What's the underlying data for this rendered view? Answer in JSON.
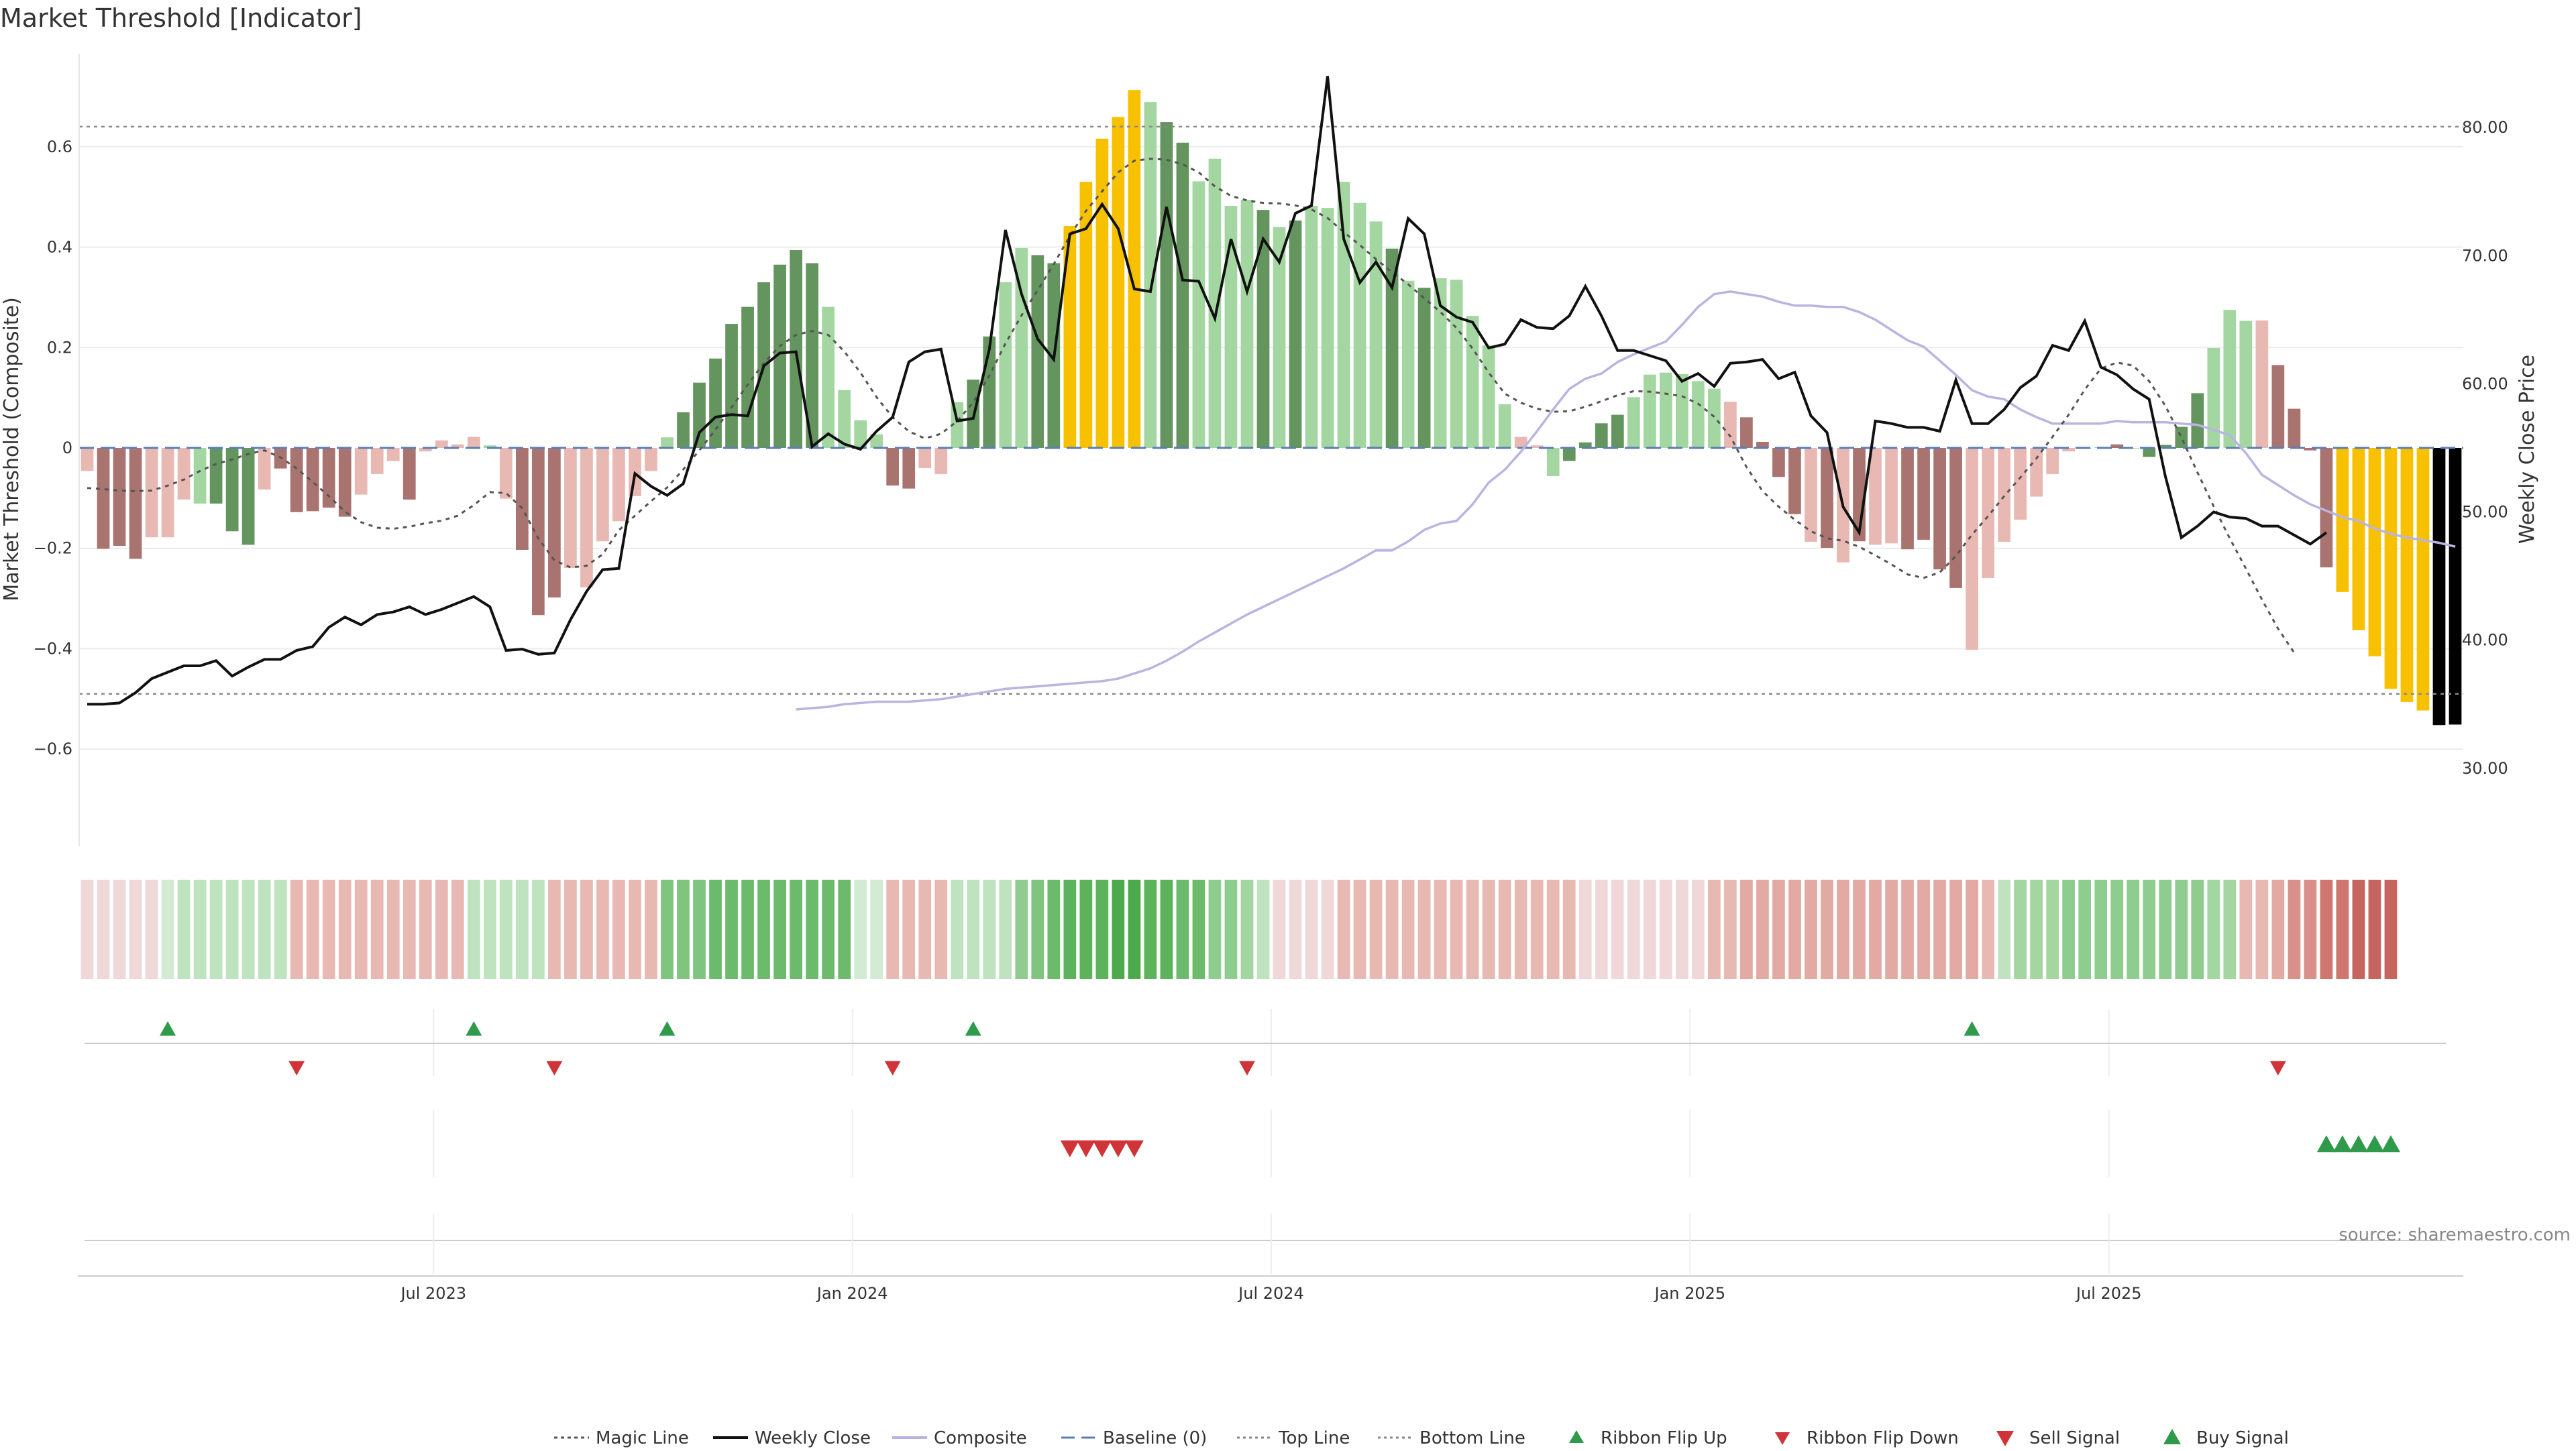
{
  "chart_data": {
    "type": "bar",
    "title": "Market Threshold [Indicator]",
    "ylabel": "Market Threshold (Composite)",
    "y2label": "Weekly Close Price",
    "source": "source: sharemaestro.com",
    "ylim": [
      -0.78,
      0.78
    ],
    "y2lim": [
      24.45,
      85.55
    ],
    "yticks": [
      {
        "v": 0.6,
        "label": "0.6"
      },
      {
        "v": 0.4,
        "label": "0.4"
      },
      {
        "v": 0.2,
        "label": "0.2"
      },
      {
        "v": 0,
        "label": "0"
      },
      {
        "v": -0.2,
        "label": "−0.2"
      },
      {
        "v": -0.4,
        "label": "−0.4"
      },
      {
        "v": -0.6,
        "label": "−0.6"
      }
    ],
    "y2ticks": [
      {
        "v": 80,
        "label": "80.00"
      },
      {
        "v": 70,
        "label": "70.00"
      },
      {
        "v": 60,
        "label": "60.00"
      },
      {
        "v": 50,
        "label": "50.00"
      },
      {
        "v": 40,
        "label": "40.00"
      },
      {
        "v": 30,
        "label": "30.00"
      }
    ],
    "xticks": [
      {
        "i": 22,
        "label": "Jul 2023"
      },
      {
        "i": 48,
        "label": "Jan 2024"
      },
      {
        "i": 74,
        "label": "Jul 2024"
      },
      {
        "i": 100,
        "label": "Jan 2025"
      },
      {
        "i": 126,
        "label": "Jul 2025"
      }
    ],
    "top_line": 0.64,
    "bottom_line": -0.49,
    "baseline": 0,
    "composite": [
      -0.046,
      -0.201,
      -0.195,
      -0.221,
      -0.178,
      -0.178,
      -0.103,
      -0.111,
      -0.111,
      -0.166,
      -0.193,
      -0.083,
      -0.041,
      -0.128,
      -0.126,
      -0.119,
      -0.137,
      -0.093,
      -0.052,
      -0.026,
      -0.103,
      -0.007,
      0.015,
      0.007,
      0.022,
      0.005,
      -0.101,
      -0.203,
      -0.333,
      -0.298,
      -0.239,
      -0.278,
      -0.186,
      -0.146,
      -0.096,
      -0.046,
      0.021,
      0.071,
      0.13,
      0.178,
      0.247,
      0.281,
      0.33,
      0.365,
      0.394,
      0.368,
      0.281,
      0.115,
      0.055,
      0.027,
      -0.075,
      -0.081,
      -0.04,
      -0.052,
      0.091,
      0.136,
      0.222,
      0.33,
      0.398,
      0.384,
      0.368,
      0.442,
      0.53,
      0.616,
      0.659,
      0.713,
      0.689,
      0.649,
      0.608,
      0.531,
      0.576,
      0.482,
      0.494,
      0.474,
      0.44,
      0.453,
      0.482,
      0.478,
      0.53,
      0.488,
      0.451,
      0.397,
      0.333,
      0.319,
      0.338,
      0.335,
      0.263,
      0.204,
      0.087,
      0.022,
      0.005,
      -0.056,
      -0.026,
      0.011,
      0.049,
      0.066,
      0.101,
      0.146,
      0.15,
      0.147,
      0.133,
      0.118,
      0.092,
      0.061,
      0.012,
      -0.058,
      -0.132,
      -0.187,
      -0.199,
      -0.228,
      -0.186,
      -0.193,
      -0.19,
      -0.202,
      -0.183,
      -0.242,
      -0.279,
      -0.402,
      -0.259,
      -0.187,
      -0.143,
      -0.097,
      -0.052,
      -0.007,
      -0.002,
      0.002,
      0.007,
      0.0,
      -0.018,
      0.006,
      0.042,
      0.109,
      0.199,
      0.275,
      0.253,
      0.254,
      0.165,
      0.078,
      -0.005,
      -0.238,
      -0.287,
      -0.363,
      -0.415,
      -0.48,
      -0.506,
      -0.523,
      -0.552,
      -0.551
    ],
    "bar_colors": [
      "#e8b9b3",
      "#a97470",
      "#a97470",
      "#a97470",
      "#e8b9b3",
      "#e8b9b3",
      "#e8b9b3",
      "#a4d6a1",
      "#64955f",
      "#64955f",
      "#64955f",
      "#e8b9b3",
      "#a97470",
      "#a97470",
      "#a97470",
      "#a97470",
      "#a97470",
      "#e8b9b3",
      "#e8b9b3",
      "#e8b9b3",
      "#a97470",
      "#e8b9b3",
      "#e8b9b3",
      "#e8b9b3",
      "#e8b9b3",
      "#a4d6a1",
      "#e8b9b3",
      "#a97470",
      "#a97470",
      "#a97470",
      "#e8b9b3",
      "#e8b9b3",
      "#e8b9b3",
      "#e8b9b3",
      "#e8b9b3",
      "#e8b9b3",
      "#a4d6a1",
      "#64955f",
      "#64955f",
      "#64955f",
      "#64955f",
      "#64955f",
      "#64955f",
      "#64955f",
      "#64955f",
      "#64955f",
      "#a4d6a1",
      "#a4d6a1",
      "#a4d6a1",
      "#a4d6a1",
      "#a97470",
      "#a97470",
      "#e8b9b3",
      "#e8b9b3",
      "#a4d6a1",
      "#64955f",
      "#64955f",
      "#a4d6a1",
      "#a4d6a1",
      "#64955f",
      "#64955f",
      "#f7c100",
      "#f7c100",
      "#f7c100",
      "#f7c100",
      "#f7c100",
      "#a4d6a1",
      "#64955f",
      "#64955f",
      "#a4d6a1",
      "#a4d6a1",
      "#a4d6a1",
      "#a4d6a1",
      "#64955f",
      "#a4d6a1",
      "#64955f",
      "#a4d6a1",
      "#a4d6a1",
      "#a4d6a1",
      "#a4d6a1",
      "#a4d6a1",
      "#64955f",
      "#a4d6a1",
      "#64955f",
      "#a4d6a1",
      "#a4d6a1",
      "#a4d6a1",
      "#a4d6a1",
      "#a4d6a1",
      "#e8b9b3",
      "#e8b9b3",
      "#a4d6a1",
      "#64955f",
      "#64955f",
      "#64955f",
      "#64955f",
      "#a4d6a1",
      "#a4d6a1",
      "#a4d6a1",
      "#a4d6a1",
      "#a4d6a1",
      "#a4d6a1",
      "#e8b9b3",
      "#a97470",
      "#a97470",
      "#a97470",
      "#a97470",
      "#e8b9b3",
      "#a97470",
      "#e8b9b3",
      "#a97470",
      "#e8b9b3",
      "#e8b9b3",
      "#a97470",
      "#a97470",
      "#a97470",
      "#a97470",
      "#e8b9b3",
      "#e8b9b3",
      "#e8b9b3",
      "#e8b9b3",
      "#e8b9b3",
      "#e8b9b3",
      "#e8b9b3",
      "#a4d6a1",
      "#a4d6a1",
      "#a97470",
      "#a4d6a1",
      "#64955f",
      "#64955f",
      "#64955f",
      "#64955f",
      "#a4d6a1",
      "#a4d6a1",
      "#a4d6a1",
      "#e8b9b3",
      "#a97470",
      "#a97470",
      "#a97470",
      "#a97470",
      "#f7c100",
      "#f7c100",
      "#f7c100",
      "#f7c100",
      "#f7c100",
      "#f7c100"
    ],
    "weekly_close": [
      35.0,
      35.0,
      35.1,
      35.9,
      37.0,
      37.5,
      38.0,
      38.0,
      38.4,
      37.2,
      37.9,
      38.5,
      38.5,
      39.2,
      39.5,
      41.0,
      41.8,
      41.2,
      42.0,
      42.2,
      42.6,
      42.0,
      42.4,
      42.9,
      43.4,
      42.6,
      39.2,
      39.3,
      38.9,
      39.0,
      41.6,
      43.8,
      45.5,
      45.6,
      53.0,
      52.0,
      51.3,
      52.2,
      56.2,
      57.4,
      57.6,
      57.5,
      61.4,
      62.4,
      62.5,
      55.1,
      56.1,
      55.3,
      54.9,
      56.3,
      57.4,
      61.7,
      62.5,
      62.7,
      57.1,
      57.3,
      62.7,
      72.0,
      67.0,
      63.5,
      61.9,
      71.7,
      72.1,
      74.0,
      72.1,
      67.4,
      67.2,
      73.8,
      68.1,
      68.0,
      65.1,
      71.3,
      67.2,
      71.3,
      69.5,
      73.3,
      73.9,
      84.0,
      71.3,
      67.9,
      69.5,
      67.5,
      72.9,
      71.7,
      66.1,
      65.2,
      64.8,
      62.8,
      63.1,
      65.0,
      64.4,
      64.3,
      65.3,
      67.6,
      65.3,
      62.6,
      62.6,
      62.2,
      61.8,
      60.2,
      60.8,
      59.8,
      61.6,
      61.7,
      61.9,
      60.4,
      60.9,
      57.5,
      56.2,
      50.4,
      48.4,
      57.1,
      56.9,
      56.6,
      56.6,
      56.3,
      60.3,
      56.9,
      56.9,
      58.0,
      59.7,
      60.6,
      63.0,
      62.6,
      64.9,
      61.3,
      60.7,
      59.6,
      58.8,
      52.8,
      48.0,
      48.9,
      50.0,
      49.6,
      49.5,
      48.9,
      48.9,
      48.2,
      47.5,
      48.4
    ],
    "composite_line": [
      34.6,
      34.7,
      34.8,
      35.0,
      35.1,
      35.2,
      35.2,
      35.2,
      35.3,
      35.4,
      35.6,
      35.8,
      36.0,
      36.2,
      36.3,
      36.4,
      36.5,
      36.6,
      36.7,
      36.8,
      37.0,
      37.4,
      37.8,
      38.4,
      39.1,
      39.9,
      40.6,
      41.3,
      42.0,
      42.6,
      43.2,
      43.8,
      44.4,
      45.0,
      45.6,
      46.3,
      47.0,
      47.0,
      47.7,
      48.6,
      49.1,
      49.3,
      50.6,
      52.3,
      53.3,
      54.7,
      56.3,
      58.0,
      59.6,
      60.4,
      60.8,
      61.7,
      62.3,
      62.8,
      63.3,
      64.6,
      66.0,
      67.0,
      67.2,
      67.0,
      66.8,
      66.4,
      66.1,
      66.1,
      66.0,
      66.0,
      65.6,
      65.0,
      64.2,
      63.4,
      62.9,
      61.8,
      60.7,
      59.5,
      59.0,
      58.8,
      58.0,
      57.4,
      56.9,
      56.9,
      56.9,
      56.9,
      57.1,
      57.0,
      57.0,
      57.0,
      56.9,
      56.8,
      56.4,
      56.0,
      54.6,
      52.9,
      52.1,
      51.3,
      50.6,
      50.1,
      49.6,
      49.3,
      48.7,
      48.3,
      48.0,
      47.8,
      47.6,
      47.3
    ],
    "magic_line": [
      -0.08,
      -0.082,
      -0.085,
      -0.086,
      -0.085,
      -0.075,
      -0.063,
      -0.046,
      -0.032,
      -0.023,
      -0.012,
      -0.005,
      -0.019,
      -0.041,
      -0.068,
      -0.096,
      -0.127,
      -0.148,
      -0.159,
      -0.161,
      -0.157,
      -0.15,
      -0.145,
      -0.135,
      -0.114,
      -0.088,
      -0.09,
      -0.12,
      -0.18,
      -0.224,
      -0.238,
      -0.235,
      -0.212,
      -0.164,
      -0.135,
      -0.106,
      -0.079,
      -0.043,
      -0.005,
      0.036,
      0.081,
      0.126,
      0.169,
      0.203,
      0.225,
      0.233,
      0.225,
      0.192,
      0.15,
      0.101,
      0.061,
      0.033,
      0.019,
      0.028,
      0.053,
      0.091,
      0.144,
      0.208,
      0.264,
      0.314,
      0.366,
      0.422,
      0.472,
      0.511,
      0.549,
      0.572,
      0.576,
      0.574,
      0.565,
      0.549,
      0.521,
      0.502,
      0.493,
      0.488,
      0.487,
      0.483,
      0.475,
      0.458,
      0.43,
      0.404,
      0.376,
      0.35,
      0.326,
      0.298,
      0.271,
      0.239,
      0.198,
      0.15,
      0.108,
      0.09,
      0.078,
      0.072,
      0.073,
      0.082,
      0.093,
      0.105,
      0.113,
      0.112,
      0.108,
      0.103,
      0.088,
      0.062,
      0.023,
      -0.038,
      -0.086,
      -0.117,
      -0.143,
      -0.166,
      -0.18,
      -0.185,
      -0.197,
      -0.214,
      -0.232,
      -0.252,
      -0.259,
      -0.248,
      -0.215,
      -0.173,
      -0.136,
      -0.096,
      -0.059,
      -0.021,
      0.022,
      0.066,
      0.116,
      0.158,
      0.17,
      0.164,
      0.133,
      0.084,
      0.021,
      -0.049,
      -0.116,
      -0.18,
      -0.24,
      -0.302,
      -0.36,
      -0.408
    ],
    "ribbon": [
      "#f1d8d8",
      "#f1d8d8",
      "#f1d8d8",
      "#f1d8d8",
      "#f1d8d8",
      "#d3ead3",
      "#bfe2bf",
      "#bfe2bf",
      "#bfe2bf",
      "#bfe2bf",
      "#bfe2bf",
      "#bfe2bf",
      "#bfe2bf",
      "#e8b9b3",
      "#e8b9b3",
      "#e8b9b3",
      "#e8b9b3",
      "#e8b9b3",
      "#e8b9b3",
      "#e8b9b3",
      "#e8b9b3",
      "#e8b9b3",
      "#e8b9b3",
      "#e8b9b3",
      "#bfe2bf",
      "#bfe2bf",
      "#bfe2bf",
      "#bfe2bf",
      "#bfe2bf",
      "#e8b9b3",
      "#e8b9b3",
      "#e8b9b3",
      "#e8b9b3",
      "#e8b9b3",
      "#e8b9b3",
      "#e8b9b3",
      "#7fc47f",
      "#7fc47f",
      "#7fc47f",
      "#6cbb6c",
      "#6cbb6c",
      "#6cbb6c",
      "#6cbb6c",
      "#6cbb6c",
      "#6cbb6c",
      "#6cbb6c",
      "#6cbb6c",
      "#6cbb6c",
      "#d3ead3",
      "#d3ead3",
      "#e8b9b3",
      "#e8b9b3",
      "#e8b9b3",
      "#e8b9b3",
      "#bfe2bf",
      "#bfe2bf",
      "#bfe2bf",
      "#bfe2bf",
      "#8fcc8f",
      "#7fc47f",
      "#6cbb6c",
      "#5cb35c",
      "#5cb35c",
      "#5cb35c",
      "#4caa4c",
      "#4caa4c",
      "#5cb35c",
      "#5cb35c",
      "#6cbb6c",
      "#6cbb6c",
      "#8fcc8f",
      "#8fcc8f",
      "#a4d6a1",
      "#bfe2bf",
      "#f1d8d8",
      "#f1d8d8",
      "#f1d8d8",
      "#f1d8d8",
      "#e8b9b3",
      "#e8b9b3",
      "#e8b9b3",
      "#e8b9b3",
      "#e8b9b3",
      "#e8b9b3",
      "#e8b9b3",
      "#e8b9b3",
      "#e8b9b3",
      "#e8b9b3",
      "#e8b9b3",
      "#e8b9b3",
      "#e8b9b3",
      "#e8b9b3",
      "#e8b9b3",
      "#f1d8d8",
      "#f1d8d8",
      "#f1d8d8",
      "#f1d8d8",
      "#f1d8d8",
      "#f1d8d8",
      "#f1d8d8",
      "#f1d8d8",
      "#e8b9b3",
      "#e8b9b3",
      "#e3a9a3",
      "#e3a9a3",
      "#e3a9a3",
      "#e3a9a3",
      "#e3a9a3",
      "#e3a9a3",
      "#e3a9a3",
      "#e3a9a3",
      "#e3a9a3",
      "#e3a9a3",
      "#e3a9a3",
      "#e3a9a3",
      "#e3a9a3",
      "#e3a9a3",
      "#e3a9a3",
      "#e8b9b3",
      "#bfe2bf",
      "#a4d6a1",
      "#a4d6a1",
      "#a4d6a1",
      "#8fcc8f",
      "#8fcc8f",
      "#8fcc8f",
      "#8fcc8f",
      "#8fcc8f",
      "#8fcc8f",
      "#8fcc8f",
      "#8fcc8f",
      "#8fcc8f",
      "#a4d6a1",
      "#a4d6a1",
      "#e8b9b3",
      "#e8b9b3",
      "#e3a9a3",
      "#d98f8a",
      "#d98f8a",
      "#cf7670",
      "#cf7670",
      "#c66460",
      "#c66460",
      "#c66460"
    ],
    "ribbon_flip_up": [
      5,
      24,
      36,
      55,
      117
    ],
    "ribbon_flip_down": [
      13,
      29,
      50,
      72,
      136
    ],
    "sell_signal": [
      61,
      62,
      63,
      64,
      65
    ],
    "buy_signal": [
      139,
      140,
      141,
      142,
      143
    ],
    "colors": {
      "dark_green": "#64955f",
      "light_green": "#a4d6a1",
      "dark_red": "#a97470",
      "light_red": "#e8b9b3",
      "yellow": "#f7c100",
      "magic_line": "#555555",
      "weekly_close": "#111111",
      "composite": "#b9b4e0",
      "baseline": "#5b7fb5",
      "flip_up": "#2e9a4a",
      "flip_down": "#d13438",
      "sell": "#d13438",
      "buy": "#2e9a4a"
    },
    "legend": [
      {
        "key": "magic",
        "label": "Magic Line"
      },
      {
        "key": "close",
        "label": "Weekly Close"
      },
      {
        "key": "composite",
        "label": "Composite"
      },
      {
        "key": "baseline",
        "label": "Baseline (0)"
      },
      {
        "key": "top",
        "label": "Top Line"
      },
      {
        "key": "bottom",
        "label": "Bottom Line"
      },
      {
        "key": "flipup",
        "label": "Ribbon Flip Up"
      },
      {
        "key": "flipdown",
        "label": "Ribbon Flip Down"
      },
      {
        "key": "sell",
        "label": "Sell Signal"
      },
      {
        "key": "buy",
        "label": "Buy Signal"
      }
    ],
    "legend_placement": "bottom",
    "grid": true
  }
}
